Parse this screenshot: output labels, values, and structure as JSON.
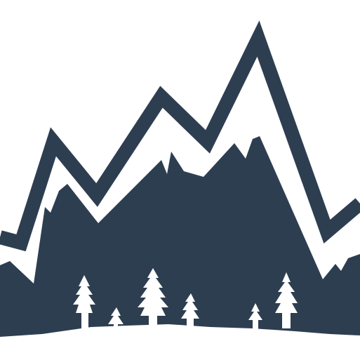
{
  "illustration": {
    "subject": "mountain-range-with-pine-forest-icon",
    "colors": {
      "background": "#ffffff",
      "foreground": "#2e3e51"
    }
  }
}
